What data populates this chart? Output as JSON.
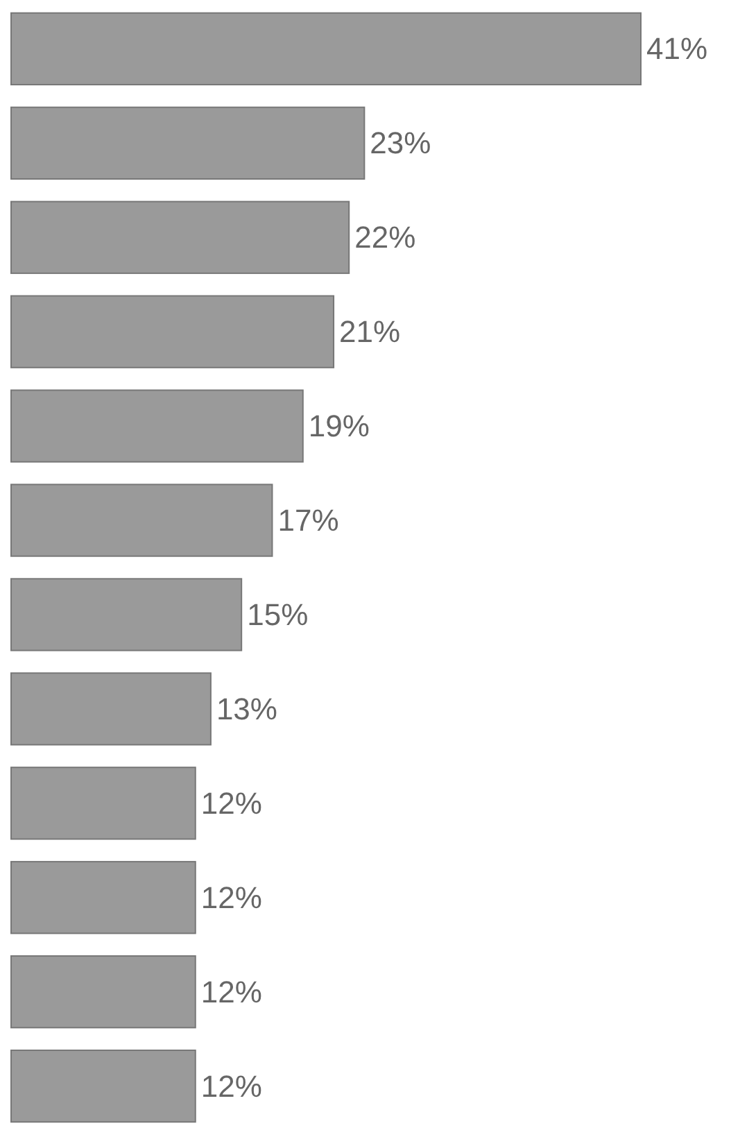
{
  "chart_data": {
    "type": "bar",
    "orientation": "horizontal",
    "categories": [
      null,
      null,
      null,
      null,
      null,
      null,
      null,
      null,
      null,
      null,
      null,
      null
    ],
    "values": [
      41,
      23,
      22,
      21,
      19,
      17,
      15,
      13,
      12,
      12,
      12,
      12
    ],
    "value_labels": [
      "41%",
      "23%",
      "22%",
      "21%",
      "19%",
      "17%",
      "15%",
      "13%",
      "12%",
      "12%",
      "12%",
      "12%"
    ],
    "color": "#9a9a9a"
  }
}
